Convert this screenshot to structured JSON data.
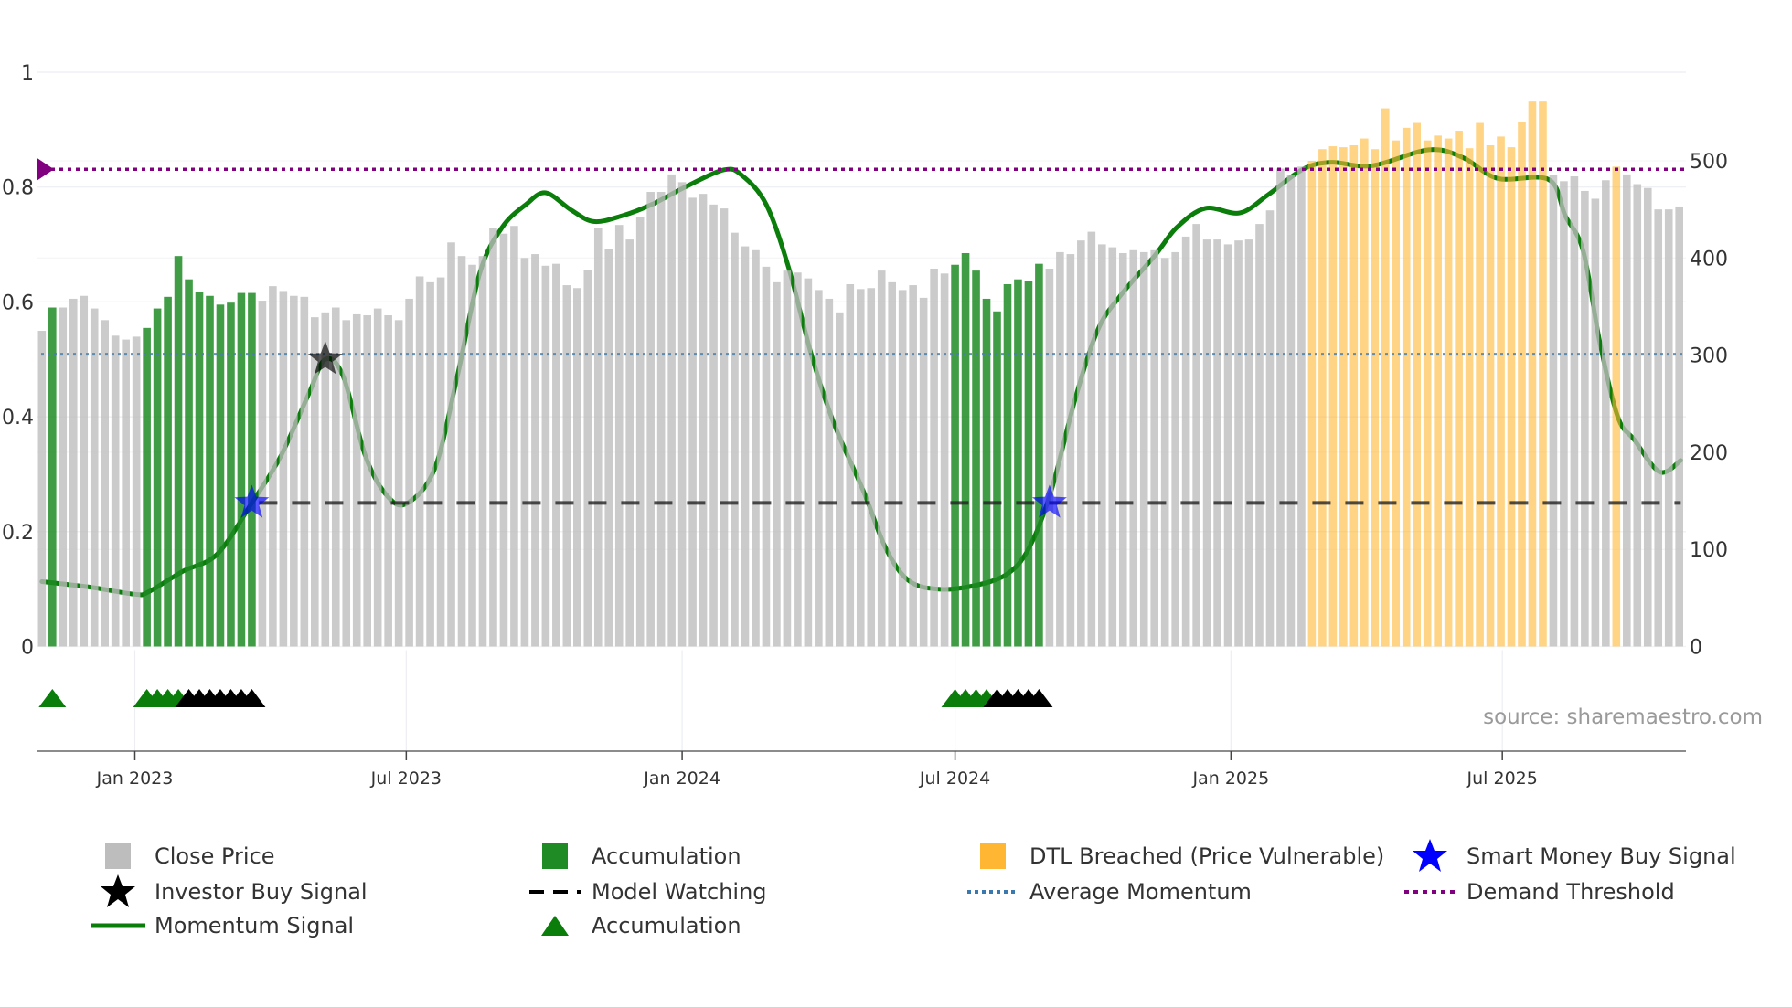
{
  "chart_data": {
    "type": "bar",
    "title": "",
    "xlabel": "",
    "ylabel_left": "",
    "ylabel_right": "",
    "source": "source: sharemaestro.com",
    "y_left": {
      "range": [
        0,
        1
      ],
      "ticks": [
        "0",
        "0.2",
        "0.4",
        "0.6",
        "0.8",
        "1"
      ],
      "tick_values": [
        0,
        0.2,
        0.4,
        0.6,
        0.8,
        1
      ]
    },
    "y_right": {
      "range": [
        0,
        591
      ],
      "ticks": [
        "0",
        "100",
        "200",
        "300",
        "400",
        "500"
      ],
      "tick_values": [
        0,
        100,
        200,
        300,
        400,
        500
      ]
    },
    "x_ticks": [
      {
        "label": "Jan 2023",
        "date": "2023-01-01"
      },
      {
        "label": "Jul 2023",
        "date": "2023-07-01"
      },
      {
        "label": "Jan 2024",
        "date": "2024-01-01"
      },
      {
        "label": "Jul 2024",
        "date": "2024-07-01"
      },
      {
        "label": "Jan 2025",
        "date": "2025-01-01"
      },
      {
        "label": "Jul 2025",
        "date": "2025-07-01"
      }
    ],
    "grid": true,
    "legend_placement": "bottom",
    "close_price": {
      "name": "Close Price",
      "first_date": "2022-10-31",
      "interval_days": 7,
      "values": [
        325,
        349,
        349,
        358,
        361,
        348,
        336,
        320,
        316,
        319,
        328,
        348,
        360,
        402,
        378,
        365,
        361,
        352,
        354,
        364,
        364,
        356,
        371,
        366,
        361,
        360,
        339,
        344,
        349,
        336,
        342,
        341,
        348,
        341,
        336,
        358,
        381,
        375,
        380,
        416,
        402,
        393,
        402,
        431,
        425,
        433,
        400,
        404,
        392,
        394,
        372,
        369,
        388,
        431,
        409,
        434,
        419,
        442,
        468,
        468,
        486,
        478,
        462,
        466,
        455,
        451,
        426,
        412,
        408,
        391,
        375,
        387,
        385,
        379,
        367,
        358,
        344,
        373,
        368,
        369,
        387,
        375,
        367,
        372,
        359,
        389,
        384,
        393,
        405,
        387,
        358,
        345,
        373,
        378,
        376,
        394,
        389,
        406,
        404,
        418,
        427,
        414,
        411,
        405,
        408,
        406,
        408,
        400,
        406,
        422,
        435,
        419,
        419,
        414,
        418,
        419,
        435,
        449,
        492,
        485,
        494,
        500,
        512,
        515,
        514,
        516,
        523,
        512,
        554,
        521,
        534,
        539,
        521,
        526,
        523,
        531,
        513,
        539,
        516,
        525,
        514,
        540,
        561,
        561,
        485,
        479,
        484,
        469,
        461,
        480,
        494,
        486,
        476,
        472,
        450,
        450,
        453
      ]
    },
    "accumulation_periods": [
      {
        "start": "2022-11-07",
        "end": "2022-11-07"
      },
      {
        "start": "2023-01-09",
        "end": "2023-03-20"
      },
      {
        "start": "2024-07-01",
        "end": "2024-08-26"
      }
    ],
    "dtl_breached_periods": [
      {
        "start": "2025-02-24",
        "end": "2025-07-28"
      },
      {
        "start": "2025-09-15",
        "end": "2025-09-15"
      }
    ],
    "accumulation_markers": {
      "green": [
        "2022-11-07",
        "2023-01-09",
        "2023-01-16",
        "2023-01-23",
        "2023-01-30",
        "2024-07-01",
        "2024-07-08",
        "2024-07-15",
        "2024-07-22"
      ],
      "black": [
        "2023-02-06",
        "2023-02-13",
        "2023-02-20",
        "2023-02-27",
        "2023-03-06",
        "2023-03-13",
        "2023-03-20",
        "2024-07-29",
        "2024-08-05",
        "2024-08-12",
        "2024-08-19",
        "2024-08-26"
      ]
    },
    "momentum_signal": {
      "name": "Momentum Signal",
      "points": [
        [
          "2022-10-31",
          0.113
        ],
        [
          "2022-12-03",
          0.103
        ],
        [
          "2023-01-01",
          0.091
        ],
        [
          "2023-01-10",
          0.095
        ],
        [
          "2023-02-02",
          0.131
        ],
        [
          "2023-02-25",
          0.161
        ],
        [
          "2023-03-20",
          0.25
        ],
        [
          "2023-04-08",
          0.33
        ],
        [
          "2023-04-27",
          0.44
        ],
        [
          "2023-05-08",
          0.5
        ],
        [
          "2023-05-20",
          0.47
        ],
        [
          "2023-06-04",
          0.33
        ],
        [
          "2023-06-19",
          0.26
        ],
        [
          "2023-07-02",
          0.25
        ],
        [
          "2023-07-20",
          0.31
        ],
        [
          "2023-08-04",
          0.47
        ],
        [
          "2023-08-19",
          0.65
        ],
        [
          "2023-09-03",
          0.73
        ],
        [
          "2023-09-19",
          0.77
        ],
        [
          "2023-10-02",
          0.79
        ],
        [
          "2023-10-19",
          0.76
        ],
        [
          "2023-11-03",
          0.74
        ],
        [
          "2023-11-22",
          0.75
        ],
        [
          "2023-12-12",
          0.77
        ],
        [
          "2024-01-03",
          0.8
        ],
        [
          "2024-01-29",
          0.83
        ],
        [
          "2024-02-10",
          0.82
        ],
        [
          "2024-02-26",
          0.77
        ],
        [
          "2024-03-12",
          0.66
        ],
        [
          "2024-03-27",
          0.51
        ],
        [
          "2024-04-11",
          0.39
        ],
        [
          "2024-05-01",
          0.27
        ],
        [
          "2024-05-16",
          0.17
        ],
        [
          "2024-05-31",
          0.115
        ],
        [
          "2024-06-19",
          0.1
        ],
        [
          "2024-07-12",
          0.105
        ],
        [
          "2024-08-04",
          0.125
        ],
        [
          "2024-08-19",
          0.17
        ],
        [
          "2024-09-03",
          0.27
        ],
        [
          "2024-09-19",
          0.43
        ],
        [
          "2024-10-04",
          0.55
        ],
        [
          "2024-10-19",
          0.61
        ],
        [
          "2024-11-11",
          0.68
        ],
        [
          "2024-11-26",
          0.73
        ],
        [
          "2024-12-15",
          0.763
        ],
        [
          "2025-01-07",
          0.755
        ],
        [
          "2025-01-26",
          0.787
        ],
        [
          "2025-02-18",
          0.831
        ],
        [
          "2025-03-09",
          0.843
        ],
        [
          "2025-04-05",
          0.837
        ],
        [
          "2025-05-13",
          0.865
        ],
        [
          "2025-06-05",
          0.851
        ],
        [
          "2025-06-28",
          0.815
        ],
        [
          "2025-08-01",
          0.813
        ],
        [
          "2025-08-12",
          0.75
        ],
        [
          "2025-08-24",
          0.688
        ],
        [
          "2025-09-04",
          0.53
        ],
        [
          "2025-09-16",
          0.4
        ],
        [
          "2025-09-27",
          0.36
        ],
        [
          "2025-10-14",
          0.304
        ],
        [
          "2025-10-28",
          0.324
        ]
      ]
    },
    "average_momentum": 0.509,
    "demand_threshold": 0.831,
    "model_watching": {
      "value": 0.25,
      "start": "2023-03-20",
      "end": "2025-10-28"
    },
    "investor_buy_signals": [
      {
        "date": "2023-05-08",
        "value": 0.5
      }
    ],
    "smart_money_buy_signals": [
      {
        "date": "2023-03-20",
        "value": 0.25
      },
      {
        "date": "2024-09-02",
        "value": 0.25
      }
    ],
    "colors": {
      "close_price": "#bdbdbd",
      "accumulation": "#1f8b24",
      "dtl": "#ffb733",
      "smart_money": "#0000ff",
      "investor": "#000000",
      "momentum": "#0a7d0a",
      "average": "#4a7fa8",
      "threshold": "#800080",
      "watching": "#222222"
    },
    "legend": [
      {
        "label": "Close Price",
        "icon": "gray-square"
      },
      {
        "label": "Accumulation",
        "icon": "green-square"
      },
      {
        "label": "DTL Breached (Price Vulnerable)",
        "icon": "orange-square"
      },
      {
        "label": "Smart Money Buy Signal",
        "icon": "blue-star"
      },
      {
        "label": "Investor Buy Signal",
        "icon": "black-star"
      },
      {
        "label": "Model Watching",
        "icon": "black-dashed-line"
      },
      {
        "label": "Average Momentum",
        "icon": "blue-dotted-line"
      },
      {
        "label": "Demand Threshold",
        "icon": "purple-dotted-line"
      },
      {
        "label": "Momentum Signal",
        "icon": "green-line"
      },
      {
        "label": "Accumulation",
        "icon": "green-triangle"
      }
    ]
  }
}
